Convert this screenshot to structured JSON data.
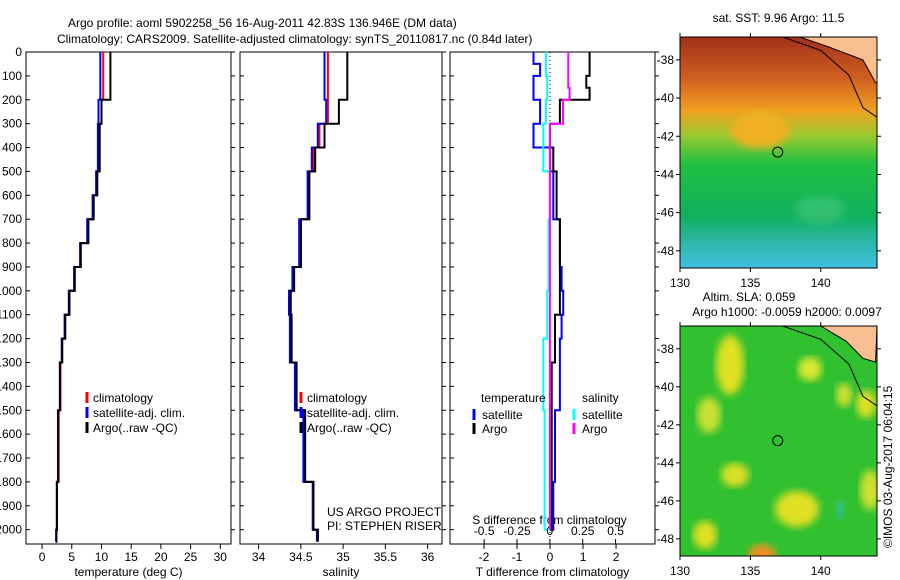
{
  "header": {
    "title_line1": "Argo profile: aoml 5902258_56 16-Aug-2011 42.83S 136.946E (DM data)",
    "title_line2": "Climatology: CARS2009. Satellite-adjusted climatology: synTS_20110817.nc (0.84d later)"
  },
  "credit": "US ARGO PROJECT",
  "pi": "PI: STEPHEN RISER",
  "stamp": "©IMOS 03-Aug-2017 06:04:15",
  "colors": {
    "climatology": "#ff0000",
    "satellite": "#0000ff",
    "argo": "#000000",
    "sal_satellite": "#00ffff",
    "sal_argo": "#ff00ff"
  },
  "chart_data": [
    {
      "type": "line",
      "xlabel": "temperature (deg C)",
      "ylabel": "",
      "xlim": [
        -2.7,
        31.8
      ],
      "ylim": [
        2060,
        0
      ],
      "xticks": [
        0,
        5,
        10,
        15,
        20,
        25,
        30
      ],
      "yticks": [
        0,
        100,
        200,
        300,
        400,
        500,
        600,
        700,
        800,
        900,
        1000,
        1100,
        1200,
        1300,
        1400,
        1500,
        1600,
        1700,
        1800,
        1900,
        2000
      ],
      "legend": [
        "climatology",
        "satellite-adj. clim.",
        "Argo(..raw -QC)"
      ],
      "series": [
        {
          "name": "climatology",
          "color": "#ff0000",
          "depth": [
            0,
            150,
            200,
            300,
            500,
            600,
            700,
            800,
            900,
            1000,
            1100,
            1200,
            1300,
            1500,
            1800,
            2000,
            2050
          ],
          "values": [
            10.3,
            10.3,
            10.0,
            9.6,
            9.2,
            8.6,
            7.7,
            6.5,
            5.5,
            4.6,
            3.9,
            3.4,
            3.1,
            2.8,
            2.5,
            2.4,
            2.3
          ]
        },
        {
          "name": "satellite-adj. clim.",
          "color": "#0000ff",
          "depth": [
            0,
            150,
            200,
            300,
            500,
            600,
            700,
            800,
            900,
            1000,
            1100,
            1200,
            1300,
            1500,
            1800,
            2000,
            2050
          ],
          "values": [
            9.8,
            9.8,
            9.5,
            9.4,
            9.1,
            8.5,
            7.6,
            6.4,
            5.4,
            4.5,
            3.8,
            3.3,
            3.0,
            2.7,
            2.5,
            2.4,
            2.3
          ]
        },
        {
          "name": "Argo(..raw -QC)",
          "color": "#000000",
          "depth": [
            0,
            150,
            200,
            300,
            500,
            600,
            700,
            800,
            900,
            1000,
            1100,
            1200,
            1300,
            1500,
            1800,
            2000,
            2050
          ],
          "values": [
            11.5,
            11.5,
            10.0,
            9.7,
            9.3,
            8.7,
            7.8,
            6.5,
            5.5,
            4.6,
            3.9,
            3.4,
            3.0,
            2.7,
            2.5,
            2.4,
            2.3
          ]
        }
      ]
    },
    {
      "type": "line",
      "xlabel": "salinity",
      "xlim": [
        33.78,
        36.17
      ],
      "ylim": [
        2060,
        0
      ],
      "xticks": [
        34,
        34.5,
        35,
        35.5,
        36
      ],
      "legend": [
        "climatology",
        "satellite-adj. clim.",
        "Argo(..raw -QC)"
      ],
      "series": [
        {
          "name": "climatology",
          "color": "#ff0000",
          "depth": [
            0,
            100,
            200,
            300,
            400,
            500,
            700,
            900,
            1000,
            1100,
            1300,
            1500,
            1800,
            2000,
            2050
          ],
          "values": [
            34.82,
            34.82,
            34.82,
            34.72,
            34.65,
            34.6,
            34.5,
            34.42,
            34.38,
            34.38,
            34.44,
            34.55,
            34.65,
            34.7,
            34.7
          ]
        },
        {
          "name": "satellite-adj. clim.",
          "color": "#0000ff",
          "depth": [
            0,
            100,
            200,
            300,
            400,
            500,
            700,
            900,
            1000,
            1100,
            1300,
            1500,
            1800,
            2000,
            2050
          ],
          "values": [
            34.78,
            34.78,
            34.8,
            34.7,
            34.63,
            34.58,
            34.48,
            34.4,
            34.36,
            34.37,
            34.43,
            34.53,
            34.64,
            34.69,
            34.69
          ]
        },
        {
          "name": "Argo(..raw -QC)",
          "color": "#000000",
          "depth": [
            0,
            150,
            200,
            300,
            400,
            500,
            700,
            900,
            1000,
            1100,
            1300,
            1500,
            1800,
            2000,
            2050
          ],
          "values": [
            35.05,
            35.05,
            34.95,
            34.78,
            34.67,
            34.6,
            34.5,
            34.42,
            34.38,
            34.39,
            34.45,
            34.55,
            34.65,
            34.7,
            34.7
          ]
        }
      ]
    },
    {
      "type": "line",
      "xlabel": "T difference from climatology",
      "x2label": "S difference from climatology",
      "xlim": [
        -3.03,
        3.18
      ],
      "x2lim": [
        -0.76,
        0.8
      ],
      "ylim": [
        2060,
        0
      ],
      "xticks": [
        -2,
        -1,
        0,
        1,
        2
      ],
      "x2ticks": [
        -0.5,
        -0.25,
        0,
        0.25,
        0.5
      ],
      "legend_headers": [
        "temperature",
        "salinity"
      ],
      "legend": [
        "satellite",
        "Argo",
        "satellite",
        "Argo"
      ],
      "series": [
        {
          "name": "T satellite",
          "axis": "T",
          "color": "#0000ff",
          "depth": [
            0,
            50,
            100,
            200,
            300,
            400,
            500,
            700,
            900,
            1000,
            1100,
            1200,
            1500,
            1800,
            2000
          ],
          "values": [
            -0.5,
            -0.3,
            -0.5,
            -0.3,
            -0.5,
            0.0,
            0.1,
            0.3,
            0.35,
            0.4,
            0.35,
            0.3,
            0.15,
            0.1,
            0.05
          ]
        },
        {
          "name": "T Argo",
          "axis": "T",
          "color": "#000000",
          "depth": [
            0,
            100,
            150,
            200,
            300,
            400,
            500,
            700,
            900,
            1100,
            1300,
            1500,
            2000
          ],
          "values": [
            1.2,
            1.1,
            1.2,
            0.3,
            0.0,
            0.1,
            0.2,
            0.3,
            0.3,
            0.15,
            0.05,
            0.05,
            0.0
          ]
        },
        {
          "name": "S satellite",
          "axis": "S",
          "color": "#00ffff",
          "depth": [
            0,
            100,
            200,
            300,
            500,
            700,
            1000,
            1200,
            1500,
            2000
          ],
          "values": [
            -0.03,
            -0.02,
            -0.03,
            -0.05,
            0.0,
            -0.01,
            -0.02,
            -0.05,
            -0.04,
            -0.02
          ]
        },
        {
          "name": "S Argo",
          "axis": "S",
          "color": "#ff00ff",
          "depth": [
            0,
            100,
            150,
            200,
            300,
            500,
            700,
            1000,
            1500,
            2000
          ],
          "values": [
            0.14,
            0.14,
            0.15,
            0.1,
            0.0,
            0.0,
            0.0,
            0.0,
            0.0,
            0.0
          ]
        }
      ]
    },
    {
      "type": "heatmap",
      "title": "sat. SST: 9.96 Argo: 11.5",
      "xlim": [
        130,
        144
      ],
      "ylim": [
        -48.9,
        -36.8
      ],
      "xticks": [
        130,
        135,
        140
      ],
      "yticks": [
        -38,
        -40,
        -42,
        -44,
        -46,
        -48
      ],
      "marker": {
        "lon": 136.946,
        "lat": -42.83
      }
    },
    {
      "type": "heatmap",
      "title": "Altim. SLA: 0.059",
      "subtitle": "Argo h1000: -0.0059 h2000: 0.0097",
      "xlim": [
        130,
        144
      ],
      "ylim": [
        -48.9,
        -36.8
      ],
      "xticks": [
        130,
        135,
        140
      ],
      "yticks": [
        -38,
        -40,
        -42,
        -44,
        -46,
        -48
      ],
      "marker": {
        "lon": 136.946,
        "lat": -42.83
      }
    }
  ]
}
